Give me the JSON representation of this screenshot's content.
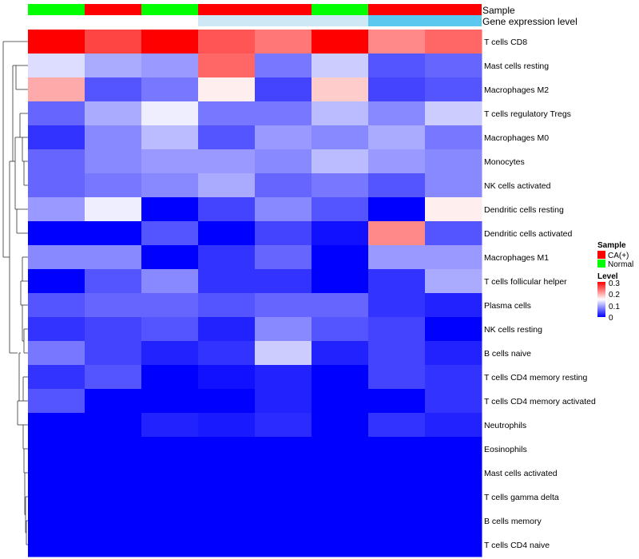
{
  "annotation_labels": {
    "sample": "Sample",
    "expression": "Gene expression level"
  },
  "legend": {
    "sample_title": "Sample",
    "sample_items": [
      {
        "label": "CA(+)",
        "color": "#ff0000"
      },
      {
        "label": "Normal",
        "color": "#00ff00"
      }
    ],
    "level_title": "Level",
    "level_ticks": [
      "0.3",
      "0.2",
      "0.1",
      "0"
    ]
  },
  "colors": {
    "low": "#0000ff",
    "mid": "#ffffff",
    "high": "#ff0000",
    "expr_light": "#cfe8f6",
    "expr_dark": "#5bc8f0"
  },
  "chart_data": {
    "type": "heatmap",
    "title": "",
    "xlabel": "",
    "ylabel": "",
    "value_range": [
      0,
      0.3
    ],
    "columns": [
      {
        "sample": "Normal",
        "expression": "white"
      },
      {
        "sample": "CA(+)",
        "expression": "white"
      },
      {
        "sample": "Normal",
        "expression": "white"
      },
      {
        "sample": "CA(+)",
        "expression": "light"
      },
      {
        "sample": "CA(+)",
        "expression": "light"
      },
      {
        "sample": "Normal",
        "expression": "light"
      },
      {
        "sample": "CA(+)",
        "expression": "dark"
      },
      {
        "sample": "CA(+)",
        "expression": "dark"
      }
    ],
    "rows": [
      "T cells CD8",
      "Mast cells resting",
      "Macrophages M2",
      "T cells regulatory  Tregs",
      "Macrophages M0",
      "Monocytes",
      "NK cells activated",
      "Dendritic cells resting",
      "Dendritic cells activated",
      "Macrophages M1",
      "T cells follicular helper",
      "Plasma cells",
      "NK cells resting",
      "B cells naive",
      "T cells CD4 memory resting",
      "T cells CD4 memory activated",
      "Neutrophils",
      "Eosinophils",
      "Mast cells activated",
      "T cells gamma delta",
      "B cells memory",
      "T cells CD4 naive"
    ],
    "values": [
      [
        0.3,
        0.26,
        0.3,
        0.25,
        0.23,
        0.3,
        0.22,
        0.24
      ],
      [
        0.13,
        0.1,
        0.09,
        0.24,
        0.07,
        0.12,
        0.05,
        0.06
      ],
      [
        0.2,
        0.05,
        0.07,
        0.16,
        0.04,
        0.18,
        0.04,
        0.05
      ],
      [
        0.06,
        0.1,
        0.14,
        0.07,
        0.07,
        0.11,
        0.08,
        0.12
      ],
      [
        0.03,
        0.08,
        0.11,
        0.05,
        0.09,
        0.08,
        0.1,
        0.07
      ],
      [
        0.06,
        0.08,
        0.09,
        0.09,
        0.08,
        0.11,
        0.09,
        0.08
      ],
      [
        0.06,
        0.07,
        0.08,
        0.1,
        0.06,
        0.07,
        0.05,
        0.08
      ],
      [
        0.09,
        0.14,
        0.0,
        0.04,
        0.08,
        0.05,
        0.0,
        0.16
      ],
      [
        0.0,
        0.0,
        0.05,
        0.0,
        0.04,
        0.01,
        0.22,
        0.05
      ],
      [
        0.08,
        0.08,
        0.0,
        0.03,
        0.06,
        0.0,
        0.09,
        0.09
      ],
      [
        0.0,
        0.05,
        0.08,
        0.03,
        0.03,
        0.0,
        0.03,
        0.1
      ],
      [
        0.05,
        0.06,
        0.06,
        0.05,
        0.06,
        0.06,
        0.03,
        0.02
      ],
      [
        0.03,
        0.04,
        0.05,
        0.02,
        0.08,
        0.05,
        0.04,
        0.0
      ],
      [
        0.07,
        0.04,
        0.02,
        0.03,
        0.12,
        0.02,
        0.04,
        0.02
      ],
      [
        0.03,
        0.05,
        0.0,
        0.01,
        0.02,
        0.0,
        0.04,
        0.03
      ],
      [
        0.05,
        0.0,
        0.0,
        0.0,
        0.02,
        0.0,
        0.0,
        0.03
      ],
      [
        0.0,
        0.0,
        0.02,
        0.015,
        0.025,
        0.0,
        0.03,
        0.02
      ],
      [
        0.0,
        0.0,
        0.0,
        0.0,
        0.0,
        0.0,
        0.0,
        0.0
      ],
      [
        0.0,
        0.0,
        0.0,
        0.0,
        0.0,
        0.0,
        0.0,
        0.0
      ],
      [
        0.0,
        0.0,
        0.0,
        0.0,
        0.0,
        0.0,
        0.0,
        0.0
      ],
      [
        0.0,
        0.0,
        0.0,
        0.0,
        0.0,
        0.0,
        0.0,
        0.0
      ],
      [
        0.0,
        0.0,
        0.0,
        0.0,
        0.0,
        0.0,
        0.0,
        0.0
      ]
    ],
    "row_dendrogram": true,
    "legend_position": "right"
  }
}
